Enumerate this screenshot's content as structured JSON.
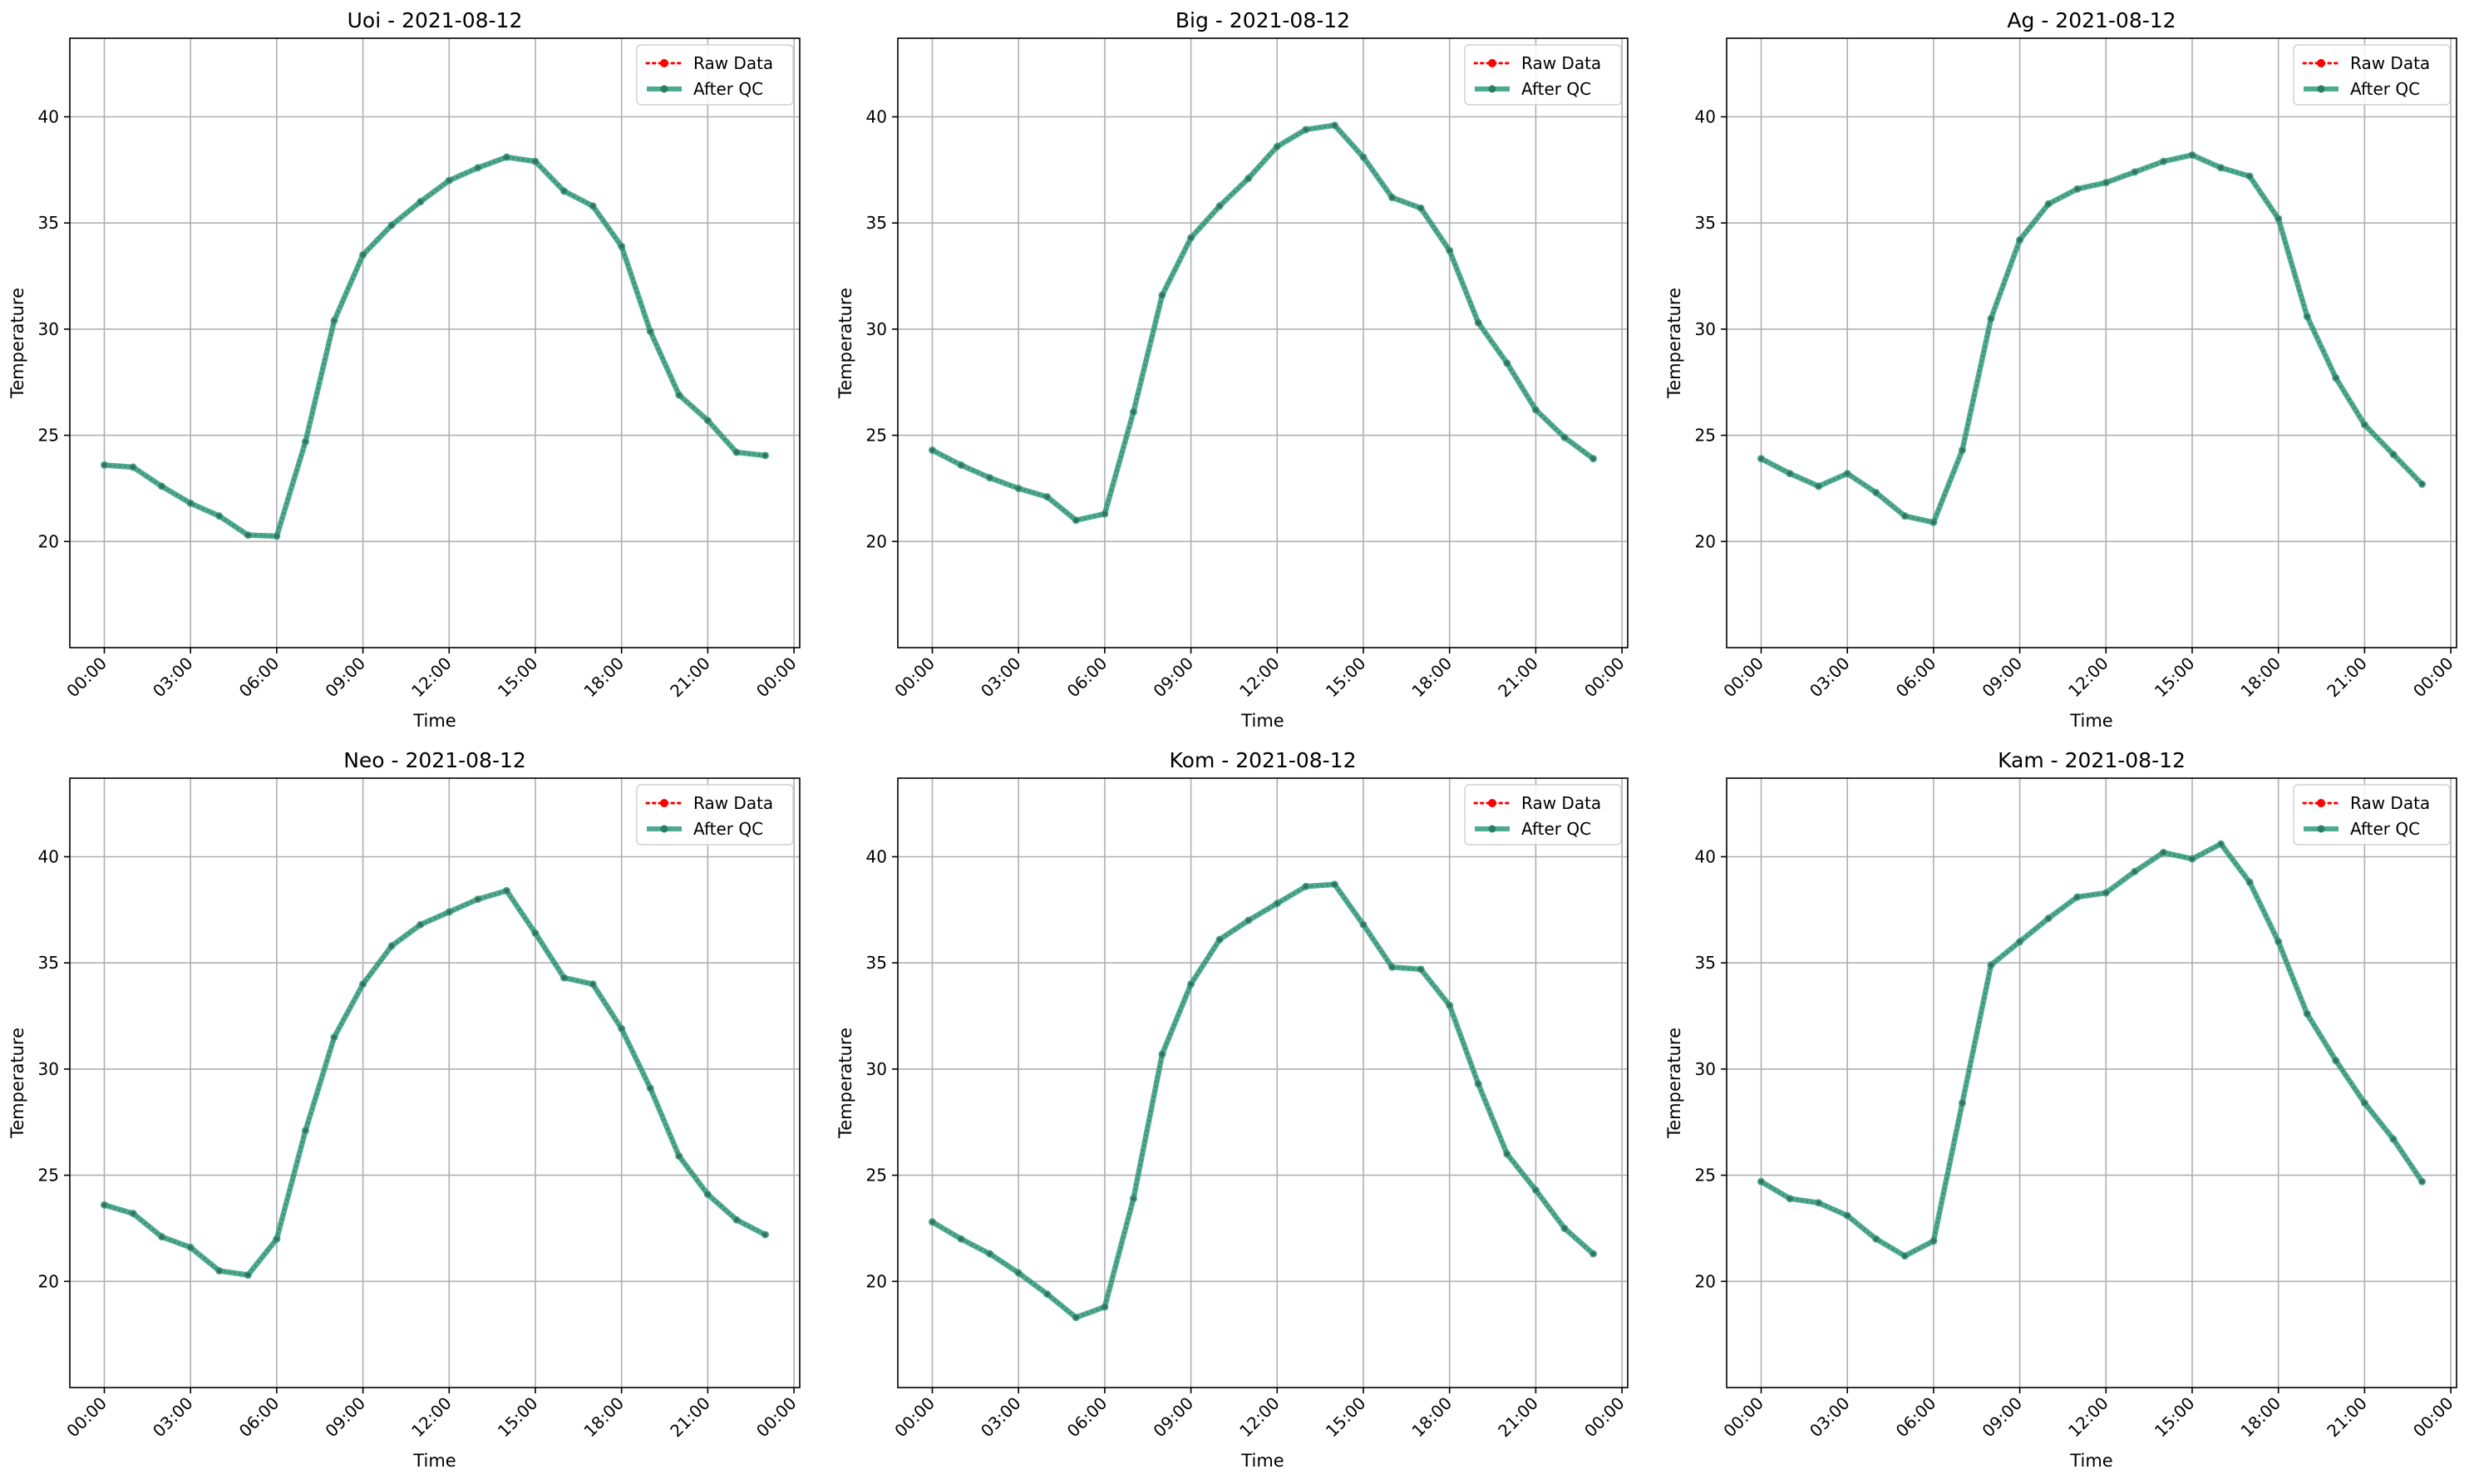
{
  "chart_data": [
    {
      "type": "line",
      "title": "Uoi - 2021-08-12",
      "xlabel": "Time",
      "ylabel": "Temperature",
      "xlim": [
        "2021-08-11 22:48",
        "2021-08-13 00:12"
      ],
      "ylim": [
        15.0,
        43.7
      ],
      "xticks": [
        "00:00",
        "03:00",
        "06:00",
        "09:00",
        "12:00",
        "15:00",
        "18:00",
        "21:00",
        "00:00"
      ],
      "yticks": [
        20,
        25,
        30,
        35,
        40
      ],
      "grid": true,
      "legend": "top-right",
      "x": [
        "00:00",
        "01:00",
        "02:00",
        "03:00",
        "04:00",
        "05:00",
        "06:00",
        "07:00",
        "08:00",
        "09:00",
        "10:00",
        "11:00",
        "12:00",
        "13:00",
        "14:00",
        "15:00",
        "16:00",
        "17:00",
        "18:00",
        "19:00",
        "20:00",
        "21:00",
        "22:00",
        "23:00"
      ],
      "series": [
        {
          "name": "Raw Data",
          "color": "#ff0000",
          "style": "dotted",
          "values": [
            23.6,
            23.5,
            22.6,
            21.8,
            21.2,
            20.3,
            20.25,
            24.7,
            30.4,
            33.5,
            34.9,
            36.0,
            37.0,
            37.6,
            38.1,
            37.9,
            36.5,
            35.8,
            33.9,
            29.9,
            26.9,
            25.7,
            24.2,
            24.05
          ]
        },
        {
          "name": "After QC",
          "color": "#2e9a7c",
          "style": "solid",
          "values": [
            23.6,
            23.5,
            22.6,
            21.8,
            21.2,
            20.3,
            20.25,
            24.7,
            30.4,
            33.5,
            34.9,
            36.0,
            37.0,
            37.6,
            38.1,
            37.9,
            36.5,
            35.8,
            33.9,
            29.9,
            26.9,
            25.7,
            24.2,
            24.05
          ]
        }
      ]
    },
    {
      "type": "line",
      "title": "Big - 2021-08-12",
      "xlabel": "Time",
      "ylabel": "Temperature",
      "xlim": [
        "2021-08-11 22:48",
        "2021-08-13 00:12"
      ],
      "ylim": [
        15.0,
        43.7
      ],
      "xticks": [
        "00:00",
        "03:00",
        "06:00",
        "09:00",
        "12:00",
        "15:00",
        "18:00",
        "21:00",
        "00:00"
      ],
      "yticks": [
        20,
        25,
        30,
        35,
        40
      ],
      "grid": true,
      "legend": "top-right",
      "x": [
        "00:00",
        "01:00",
        "02:00",
        "03:00",
        "04:00",
        "05:00",
        "06:00",
        "07:00",
        "08:00",
        "09:00",
        "10:00",
        "11:00",
        "12:00",
        "13:00",
        "14:00",
        "15:00",
        "16:00",
        "17:00",
        "18:00",
        "19:00",
        "20:00",
        "21:00",
        "22:00",
        "23:00"
      ],
      "series": [
        {
          "name": "Raw Data",
          "color": "#ff0000",
          "style": "dotted",
          "values": [
            24.3,
            23.6,
            23.0,
            22.5,
            22.1,
            21.0,
            21.3,
            26.1,
            31.6,
            34.3,
            35.8,
            37.1,
            38.6,
            39.4,
            39.6,
            38.1,
            36.2,
            35.7,
            33.7,
            30.3,
            28.4,
            26.2,
            24.9,
            23.9
          ]
        },
        {
          "name": "After QC",
          "color": "#2e9a7c",
          "style": "solid",
          "values": [
            24.3,
            23.6,
            23.0,
            22.5,
            22.1,
            21.0,
            21.3,
            26.1,
            31.6,
            34.3,
            35.8,
            37.1,
            38.6,
            39.4,
            39.6,
            38.1,
            36.2,
            35.7,
            33.7,
            30.3,
            28.4,
            26.2,
            24.9,
            23.9
          ]
        }
      ]
    },
    {
      "type": "line",
      "title": "Ag - 2021-08-12",
      "xlabel": "Time",
      "ylabel": "Temperature",
      "xlim": [
        "2021-08-11 22:48",
        "2021-08-13 00:12"
      ],
      "ylim": [
        15.0,
        43.7
      ],
      "xticks": [
        "00:00",
        "03:00",
        "06:00",
        "09:00",
        "12:00",
        "15:00",
        "18:00",
        "21:00",
        "00:00"
      ],
      "yticks": [
        20,
        25,
        30,
        35,
        40
      ],
      "grid": true,
      "legend": "top-right",
      "x": [
        "00:00",
        "01:00",
        "02:00",
        "03:00",
        "04:00",
        "05:00",
        "06:00",
        "07:00",
        "08:00",
        "09:00",
        "10:00",
        "11:00",
        "12:00",
        "13:00",
        "14:00",
        "15:00",
        "16:00",
        "17:00",
        "18:00",
        "19:00",
        "20:00",
        "21:00",
        "22:00",
        "23:00"
      ],
      "series": [
        {
          "name": "Raw Data",
          "color": "#ff0000",
          "style": "dotted",
          "values": [
            23.9,
            23.2,
            22.6,
            23.2,
            22.3,
            21.2,
            20.9,
            24.3,
            30.5,
            34.2,
            35.9,
            36.6,
            36.9,
            37.4,
            37.9,
            38.2,
            37.6,
            37.2,
            35.2,
            30.6,
            27.7,
            25.5,
            24.1,
            22.7
          ]
        },
        {
          "name": "After QC",
          "color": "#2e9a7c",
          "style": "solid",
          "values": [
            23.9,
            23.2,
            22.6,
            23.2,
            22.3,
            21.2,
            20.9,
            24.3,
            30.5,
            34.2,
            35.9,
            36.6,
            36.9,
            37.4,
            37.9,
            38.2,
            37.6,
            37.2,
            35.2,
            30.6,
            27.7,
            25.5,
            24.1,
            22.7
          ]
        }
      ]
    },
    {
      "type": "line",
      "title": "Neo - 2021-08-12",
      "xlabel": "Time",
      "ylabel": "Temperature",
      "xlim": [
        "2021-08-11 22:48",
        "2021-08-13 00:12"
      ],
      "ylim": [
        15.0,
        43.7
      ],
      "xticks": [
        "00:00",
        "03:00",
        "06:00",
        "09:00",
        "12:00",
        "15:00",
        "18:00",
        "21:00",
        "00:00"
      ],
      "yticks": [
        20,
        25,
        30,
        35,
        40
      ],
      "grid": true,
      "legend": "top-right",
      "x": [
        "00:00",
        "01:00",
        "02:00",
        "03:00",
        "04:00",
        "05:00",
        "06:00",
        "07:00",
        "08:00",
        "09:00",
        "10:00",
        "11:00",
        "12:00",
        "13:00",
        "14:00",
        "15:00",
        "16:00",
        "17:00",
        "18:00",
        "19:00",
        "20:00",
        "21:00",
        "22:00",
        "23:00"
      ],
      "series": [
        {
          "name": "Raw Data",
          "color": "#ff0000",
          "style": "dotted",
          "values": [
            23.6,
            23.2,
            22.1,
            21.6,
            20.5,
            20.3,
            22.0,
            27.1,
            31.5,
            34.0,
            35.8,
            36.8,
            37.4,
            38.0,
            38.4,
            36.4,
            34.3,
            34.0,
            31.9,
            29.1,
            25.9,
            24.1,
            22.9,
            22.2
          ]
        },
        {
          "name": "After QC",
          "color": "#2e9a7c",
          "style": "solid",
          "values": [
            23.6,
            23.2,
            22.1,
            21.6,
            20.5,
            20.3,
            22.0,
            27.1,
            31.5,
            34.0,
            35.8,
            36.8,
            37.4,
            38.0,
            38.4,
            36.4,
            34.3,
            34.0,
            31.9,
            29.1,
            25.9,
            24.1,
            22.9,
            22.2
          ]
        }
      ]
    },
    {
      "type": "line",
      "title": "Kom - 2021-08-12",
      "xlabel": "Time",
      "ylabel": "Temperature",
      "xlim": [
        "2021-08-11 22:48",
        "2021-08-13 00:12"
      ],
      "ylim": [
        15.0,
        43.7
      ],
      "xticks": [
        "00:00",
        "03:00",
        "06:00",
        "09:00",
        "12:00",
        "15:00",
        "18:00",
        "21:00",
        "00:00"
      ],
      "yticks": [
        20,
        25,
        30,
        35,
        40
      ],
      "grid": true,
      "legend": "top-right",
      "x": [
        "00:00",
        "01:00",
        "02:00",
        "03:00",
        "04:00",
        "05:00",
        "06:00",
        "07:00",
        "08:00",
        "09:00",
        "10:00",
        "11:00",
        "12:00",
        "13:00",
        "14:00",
        "15:00",
        "16:00",
        "17:00",
        "18:00",
        "19:00",
        "20:00",
        "21:00",
        "22:00",
        "23:00"
      ],
      "series": [
        {
          "name": "Raw Data",
          "color": "#ff0000",
          "style": "dotted",
          "values": [
            22.8,
            22.0,
            21.3,
            20.4,
            19.4,
            18.3,
            18.8,
            23.9,
            30.7,
            34.0,
            36.1,
            37.0,
            37.8,
            38.6,
            38.7,
            36.8,
            34.8,
            34.7,
            33.0,
            29.3,
            26.0,
            24.3,
            22.5,
            21.3
          ]
        },
        {
          "name": "After QC",
          "color": "#2e9a7c",
          "style": "solid",
          "values": [
            22.8,
            22.0,
            21.3,
            20.4,
            19.4,
            18.3,
            18.8,
            23.9,
            30.7,
            34.0,
            36.1,
            37.0,
            37.8,
            38.6,
            38.7,
            36.8,
            34.8,
            34.7,
            33.0,
            29.3,
            26.0,
            24.3,
            22.5,
            21.3
          ]
        }
      ]
    },
    {
      "type": "line",
      "title": "Kam - 2021-08-12",
      "xlabel": "Time",
      "ylabel": "Temperature",
      "xlim": [
        "2021-08-11 22:48",
        "2021-08-13 00:12"
      ],
      "ylim": [
        15.0,
        43.7
      ],
      "xticks": [
        "00:00",
        "03:00",
        "06:00",
        "09:00",
        "12:00",
        "15:00",
        "18:00",
        "21:00",
        "00:00"
      ],
      "yticks": [
        20,
        25,
        30,
        35,
        40
      ],
      "grid": true,
      "legend": "top-right",
      "x": [
        "00:00",
        "01:00",
        "02:00",
        "03:00",
        "04:00",
        "05:00",
        "06:00",
        "07:00",
        "08:00",
        "09:00",
        "10:00",
        "11:00",
        "12:00",
        "13:00",
        "14:00",
        "15:00",
        "16:00",
        "17:00",
        "18:00",
        "19:00",
        "20:00",
        "21:00",
        "22:00",
        "23:00"
      ],
      "series": [
        {
          "name": "Raw Data",
          "color": "#ff0000",
          "style": "dotted",
          "values": [
            24.7,
            23.9,
            23.7,
            23.1,
            22.0,
            21.2,
            21.9,
            28.4,
            34.9,
            36.0,
            37.1,
            38.1,
            38.3,
            39.3,
            40.2,
            39.9,
            40.6,
            38.8,
            36.0,
            32.6,
            30.4,
            28.4,
            26.7,
            24.7
          ]
        },
        {
          "name": "After QC",
          "color": "#2e9a7c",
          "style": "solid",
          "values": [
            24.7,
            23.9,
            23.7,
            23.1,
            22.0,
            21.2,
            21.9,
            28.4,
            34.9,
            36.0,
            37.1,
            38.1,
            38.3,
            39.3,
            40.2,
            39.9,
            40.6,
            38.8,
            36.0,
            32.6,
            30.4,
            28.4,
            26.7,
            24.7
          ]
        }
      ]
    }
  ]
}
